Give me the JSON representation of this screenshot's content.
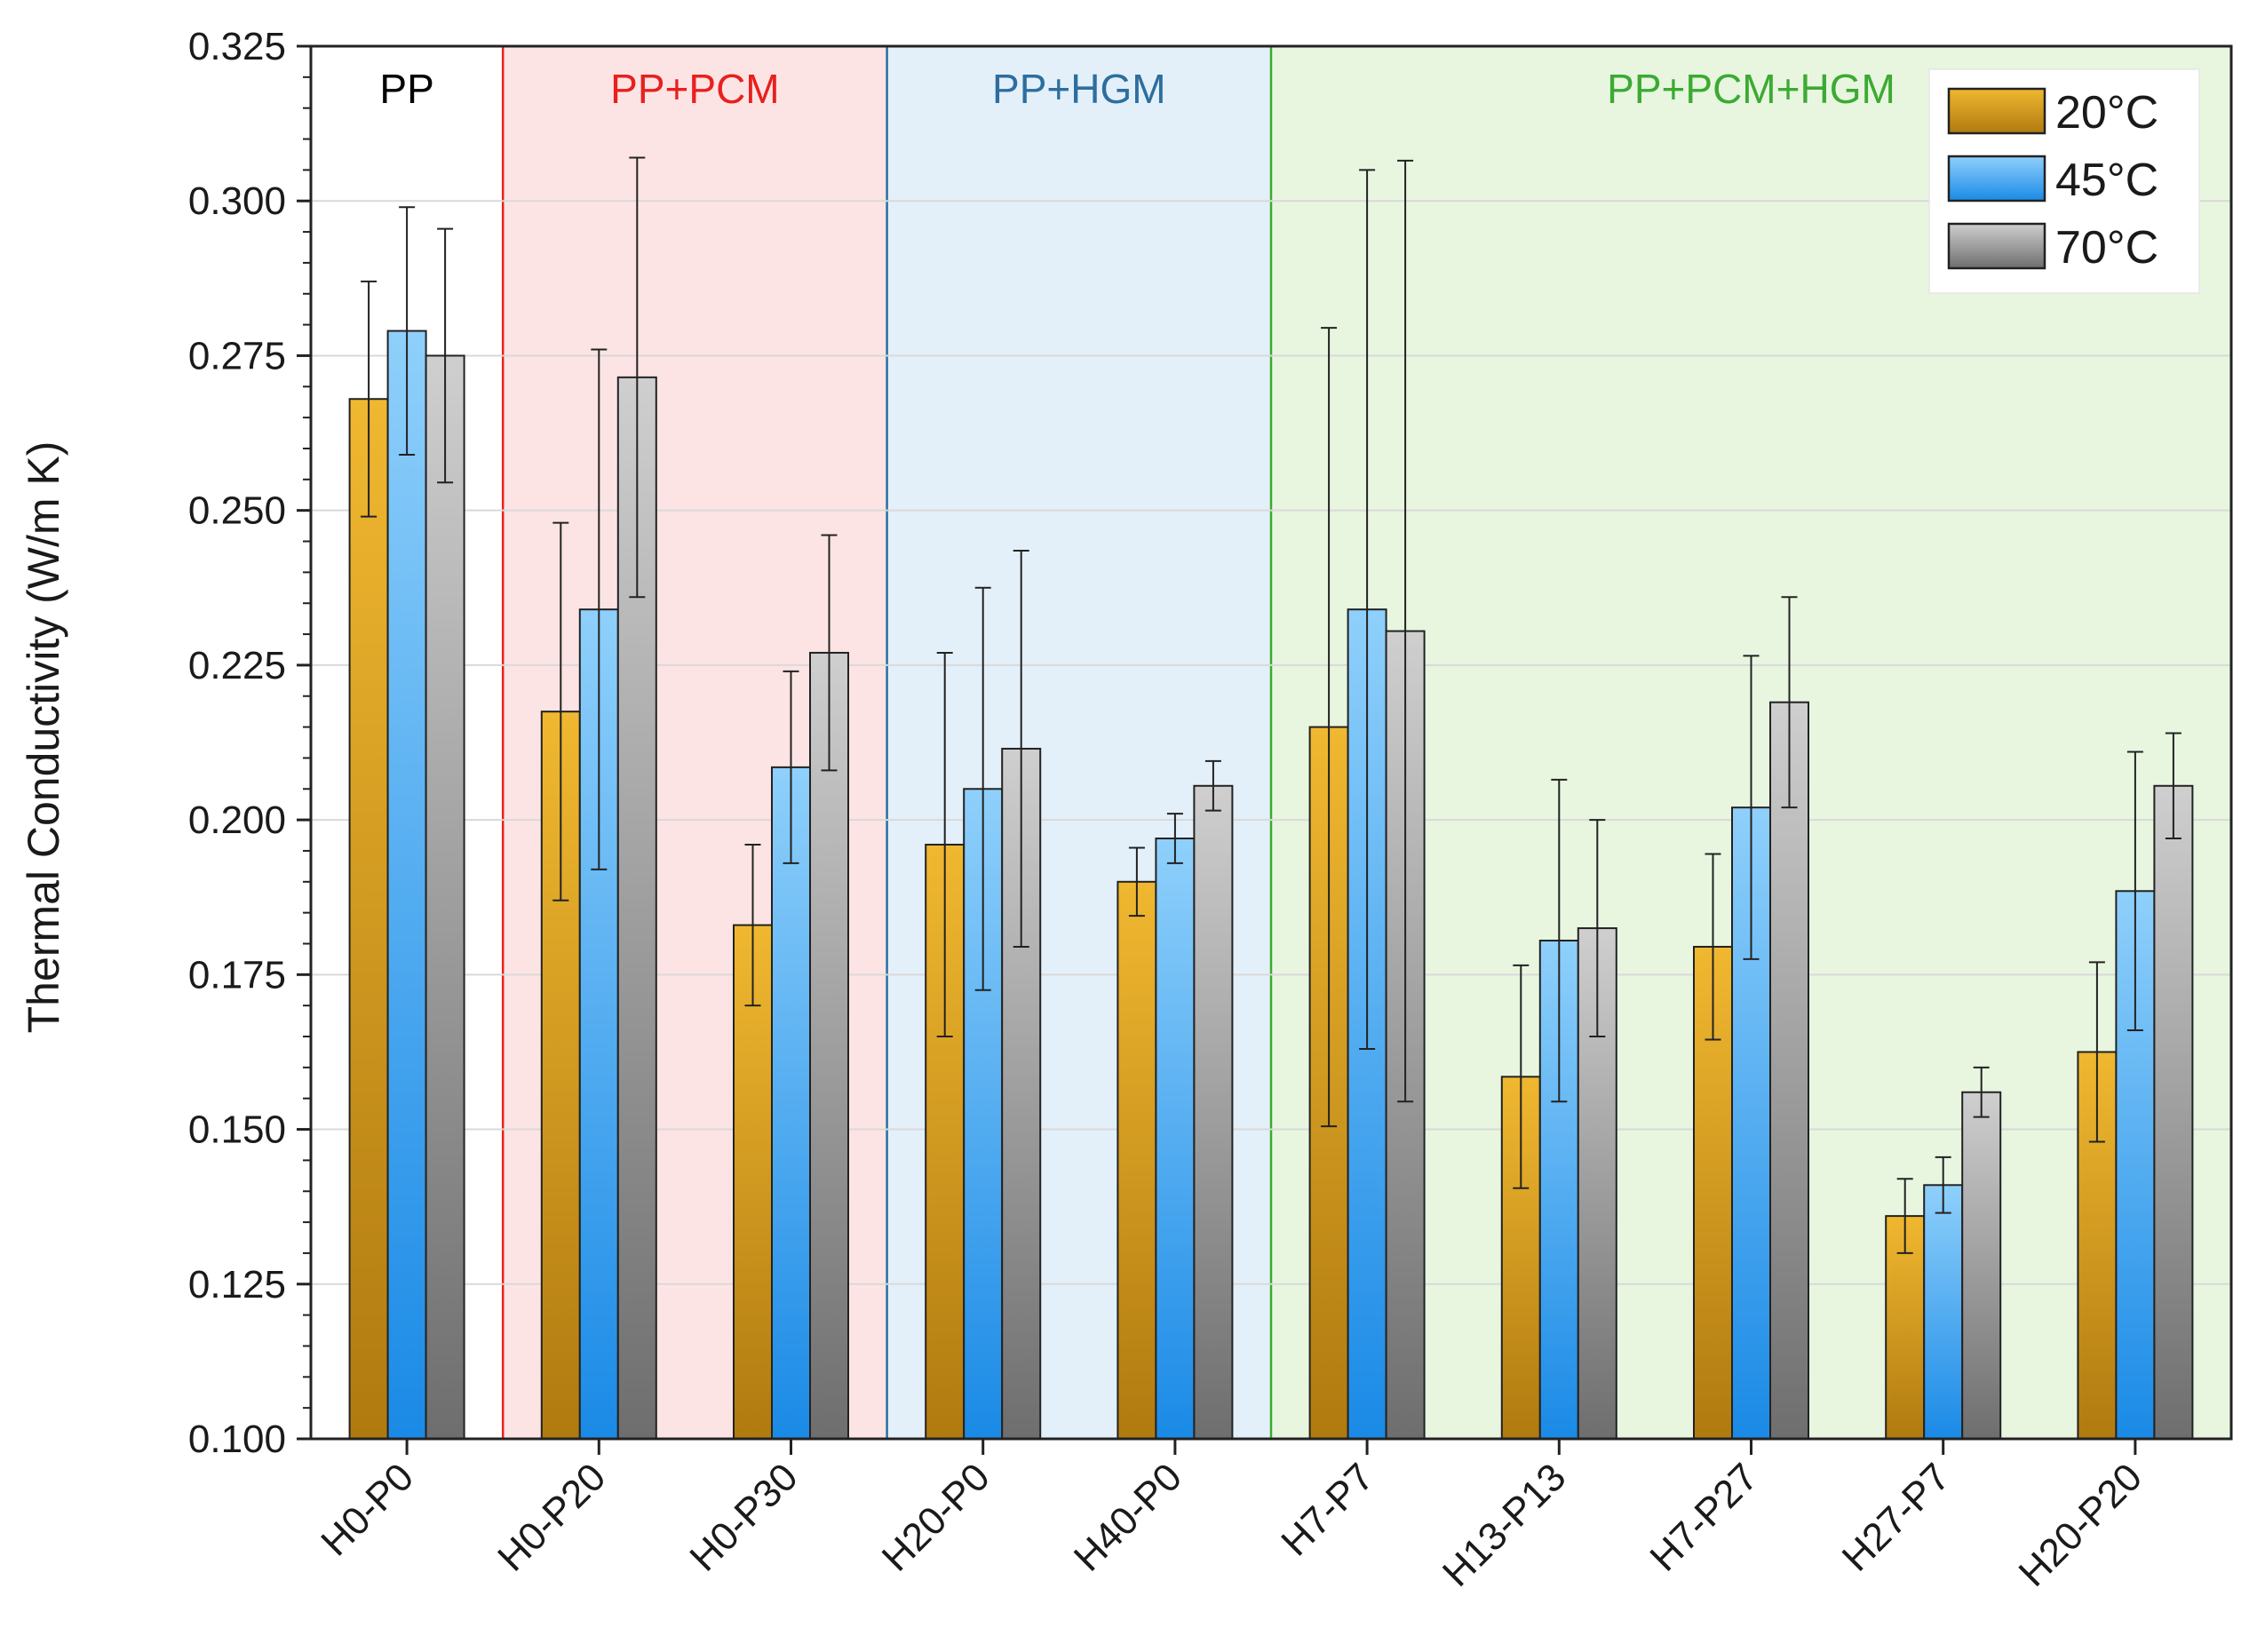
{
  "chart_data": {
    "type": "bar",
    "title": "",
    "xlabel": "",
    "ylabel": "Thermal Conductivity (W/m K)",
    "ylim": [
      0.1,
      0.325
    ],
    "yticks": [
      "0.100",
      "0.125",
      "0.150",
      "0.175",
      "0.200",
      "0.225",
      "0.250",
      "0.275",
      "0.300",
      "0.325"
    ],
    "ytick_values": [
      0.1,
      0.125,
      0.15,
      0.175,
      0.2,
      0.225,
      0.25,
      0.275,
      0.3,
      0.325
    ],
    "grid": true,
    "legend_position": "top-right",
    "categories": [
      "H0-P0",
      "H0-P20",
      "H0-P30",
      "H20-P0",
      "H40-P0",
      "H7-P7",
      "H13-P13",
      "H7-P27",
      "H27-P7",
      "H20-P20"
    ],
    "series": [
      {
        "name": "20°C",
        "color": "#d69a1a",
        "values": [
          0.268,
          0.2175,
          0.183,
          0.196,
          0.19,
          0.215,
          0.1585,
          0.1795,
          0.136,
          0.1625
        ],
        "errors": [
          0.019,
          0.0305,
          0.013,
          0.031,
          0.0055,
          0.0645,
          0.018,
          0.015,
          0.006,
          0.0145
        ]
      },
      {
        "name": "45°C",
        "color": "#2b9df0",
        "values": [
          0.279,
          0.234,
          0.2085,
          0.205,
          0.197,
          0.234,
          0.1805,
          0.202,
          0.141,
          0.1885
        ],
        "errors": [
          0.02,
          0.042,
          0.0155,
          0.0325,
          0.004,
          0.071,
          0.026,
          0.0245,
          0.0045,
          0.0225
        ]
      },
      {
        "name": "70°C",
        "color": "#9b9b9b",
        "values": [
          0.275,
          0.2715,
          0.227,
          0.2115,
          0.2055,
          0.2305,
          0.1825,
          0.219,
          0.156,
          0.2055
        ],
        "errors": [
          0.0205,
          0.0355,
          0.019,
          0.032,
          0.004,
          0.076,
          0.0175,
          0.017,
          0.004,
          0.0085
        ]
      }
    ],
    "groups": [
      {
        "label": "PP",
        "from": 0,
        "to": 0,
        "color": "#000000",
        "fill": "#ffffff"
      },
      {
        "label": "PP+PCM",
        "from": 1,
        "to": 2,
        "color": "#e8201e",
        "fill": "#fde4e4"
      },
      {
        "label": "PP+HGM",
        "from": 3,
        "to": 4,
        "color": "#2d6e9e",
        "fill": "#e3f0fa"
      },
      {
        "label": "PP+PCM+HGM",
        "from": 5,
        "to": 9,
        "color": "#3caa32",
        "fill": "#e8f6e0"
      }
    ]
  }
}
